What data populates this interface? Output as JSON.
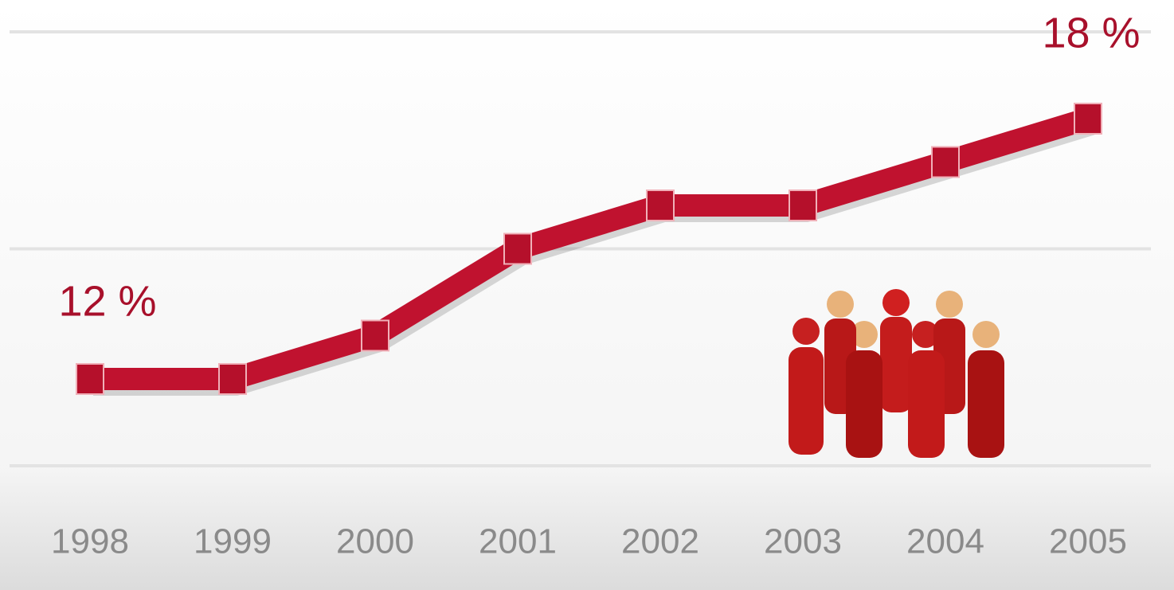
{
  "chart_data": {
    "type": "line",
    "categories": [
      "1998",
      "1999",
      "2000",
      "2001",
      "2002",
      "2003",
      "2004",
      "2005"
    ],
    "values": [
      12,
      12,
      13,
      15,
      16,
      16,
      17,
      18
    ],
    "value_labels": [
      "12 %",
      null,
      null,
      null,
      null,
      null,
      null,
      "18 %"
    ],
    "color": "#c0122f",
    "ylim": [
      10,
      20
    ],
    "yticks": [
      10,
      15,
      20
    ],
    "grid": true
  }
}
